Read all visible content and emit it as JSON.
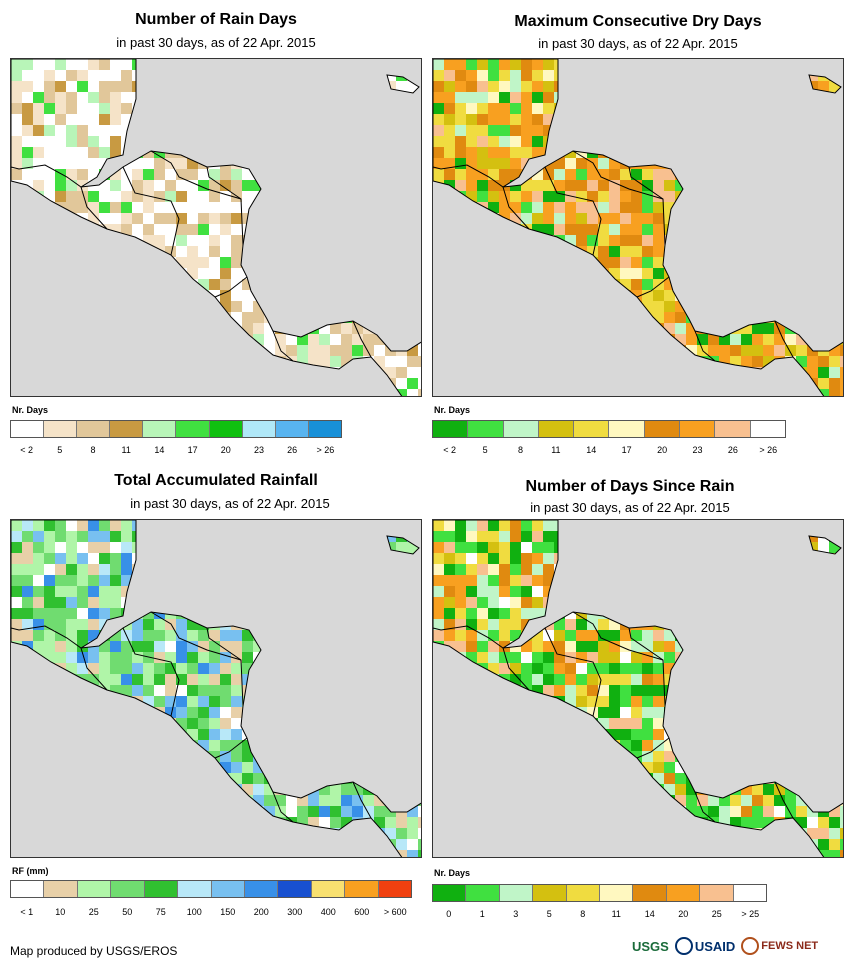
{
  "panels": [
    {
      "title": "Number of Rain Days",
      "subtitle": "in past 30 days, as of 22 Apr. 2015",
      "legend_title": "Nr. Days",
      "legend_colors": [
        "#ffffff",
        "#f5e3c8",
        "#e1c79a",
        "#c89a42",
        "#b8f5b8",
        "#40e040",
        "#10c010",
        "#b0e8f8",
        "#58b4f0",
        "#1890d8"
      ],
      "legend_labels": [
        "< 2",
        "5",
        "8",
        "11",
        "14",
        "17",
        "20",
        "23",
        "26",
        "> 26"
      ]
    },
    {
      "title": "Maximum Consecutive Dry Days",
      "subtitle": "in past 30 days, as of 22 Apr. 2015",
      "legend_title": "Nr. Days",
      "legend_colors": [
        "#10b010",
        "#40e040",
        "#c0f5c8",
        "#d4c010",
        "#f0dc40",
        "#fff8c0",
        "#e08a10",
        "#f8a020",
        "#f8c090",
        "#ffffff"
      ],
      "legend_labels": [
        "< 2",
        "5",
        "8",
        "11",
        "14",
        "17",
        "20",
        "23",
        "26",
        "> 26"
      ]
    },
    {
      "title": "Total Accumulated Rainfall",
      "subtitle": "in past 30 days, as of 22 Apr. 2015",
      "legend_title": "RF (mm)",
      "legend_colors": [
        "#ffffff",
        "#e8d0a8",
        "#b0f5a8",
        "#70dc70",
        "#30c030",
        "#b8e8f8",
        "#78c0f0",
        "#3890e8",
        "#1850d0",
        "#f8e070",
        "#f8a020",
        "#f04010"
      ],
      "legend_labels": [
        "< 1",
        "10",
        "25",
        "50",
        "75",
        "100",
        "150",
        "200",
        "300",
        "400",
        "600",
        "> 600"
      ]
    },
    {
      "title": "Number of Days Since Rain",
      "subtitle": "in past 30 days, as of 22 Apr. 2015",
      "legend_title": "Nr. Days",
      "legend_colors": [
        "#10b010",
        "#40e040",
        "#c0f5c8",
        "#d4c010",
        "#f0dc40",
        "#fff8c0",
        "#e08a10",
        "#f8a020",
        "#f8c090",
        "#ffffff"
      ],
      "legend_labels": [
        "0",
        "1",
        "3",
        "5",
        "8",
        "11",
        "14",
        "20",
        "25",
        "> 25"
      ]
    }
  ],
  "footer": "Map produced by USGS/EROS",
  "logos": {
    "usgs": "USGS",
    "usaid": "USAID",
    "fews": "FEWS NET"
  }
}
